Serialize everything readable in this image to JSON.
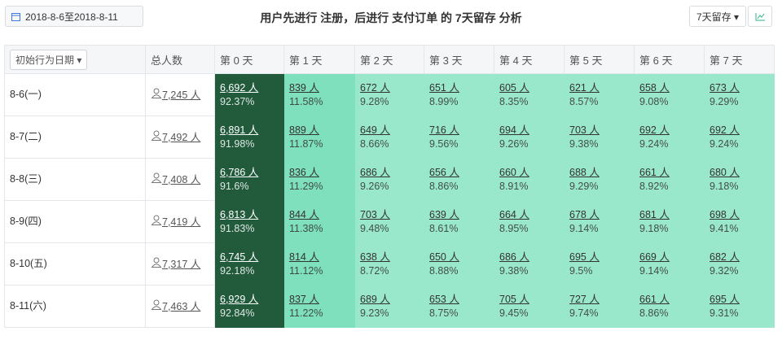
{
  "header": {
    "date_range": "2018-8-6至2018-8-11",
    "title": "用户先进行 注册，后进行 支付订单 的 7天留存 分析",
    "retention_select": "7天留存"
  },
  "table": {
    "columns": [
      "初始行为日期",
      "总人数",
      "第 0 天",
      "第 1 天",
      "第 2 天",
      "第 3 天",
      "第 4 天",
      "第 5 天",
      "第 6 天",
      "第 7 天"
    ],
    "rows": [
      {
        "date": "8-6(一)",
        "total": "7,245 人",
        "cells": [
          [
            "6,692 人",
            "92.37%"
          ],
          [
            "839 人",
            "11.58%"
          ],
          [
            "672 人",
            "9.28%"
          ],
          [
            "651 人",
            "8.99%"
          ],
          [
            "605 人",
            "8.35%"
          ],
          [
            "621 人",
            "8.57%"
          ],
          [
            "658 人",
            "9.08%"
          ],
          [
            "673 人",
            "9.29%"
          ]
        ]
      },
      {
        "date": "8-7(二)",
        "total": "7,492 人",
        "cells": [
          [
            "6,891 人",
            "91.98%"
          ],
          [
            "889 人",
            "11.87%"
          ],
          [
            "649 人",
            "8.66%"
          ],
          [
            "716 人",
            "9.56%"
          ],
          [
            "694 人",
            "9.26%"
          ],
          [
            "703 人",
            "9.38%"
          ],
          [
            "692 人",
            "9.24%"
          ],
          [
            "692 人",
            "9.24%"
          ]
        ]
      },
      {
        "date": "8-8(三)",
        "total": "7,408 人",
        "cells": [
          [
            "6,786 人",
            "91.6%"
          ],
          [
            "836 人",
            "11.29%"
          ],
          [
            "686 人",
            "9.26%"
          ],
          [
            "656 人",
            "8.86%"
          ],
          [
            "660 人",
            "8.91%"
          ],
          [
            "688 人",
            "9.29%"
          ],
          [
            "661 人",
            "8.92%"
          ],
          [
            "680 人",
            "9.18%"
          ]
        ]
      },
      {
        "date": "8-9(四)",
        "total": "7,419 人",
        "cells": [
          [
            "6,813 人",
            "91.83%"
          ],
          [
            "844 人",
            "11.38%"
          ],
          [
            "703 人",
            "9.48%"
          ],
          [
            "639 人",
            "8.61%"
          ],
          [
            "664 人",
            "8.95%"
          ],
          [
            "678 人",
            "9.14%"
          ],
          [
            "681 人",
            "9.18%"
          ],
          [
            "698 人",
            "9.41%"
          ]
        ]
      },
      {
        "date": "8-10(五)",
        "total": "7,317 人",
        "cells": [
          [
            "6,745 人",
            "92.18%"
          ],
          [
            "814 人",
            "11.12%"
          ],
          [
            "638 人",
            "8.72%"
          ],
          [
            "650 人",
            "8.88%"
          ],
          [
            "686 人",
            "9.38%"
          ],
          [
            "695 人",
            "9.5%"
          ],
          [
            "669 人",
            "9.14%"
          ],
          [
            "682 人",
            "9.32%"
          ]
        ]
      },
      {
        "date": "8-11(六)",
        "total": "7,463 人",
        "cells": [
          [
            "6,929 人",
            "92.84%"
          ],
          [
            "837 人",
            "11.22%"
          ],
          [
            "689 人",
            "9.23%"
          ],
          [
            "653 人",
            "8.75%"
          ],
          [
            "705 人",
            "9.45%"
          ],
          [
            "727 人",
            "9.74%"
          ],
          [
            "661 人",
            "8.86%"
          ],
          [
            "695 人",
            "9.31%"
          ]
        ]
      }
    ]
  }
}
